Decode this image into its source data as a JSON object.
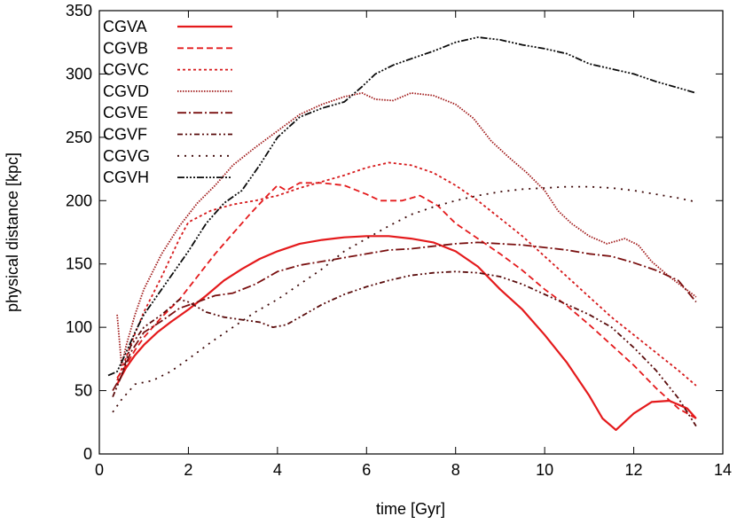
{
  "chart_data": {
    "type": "line",
    "xlabel": "time [Gyr]",
    "ylabel": "physical distance [kpc]",
    "xlim": [
      0,
      14
    ],
    "ylim": [
      0,
      350
    ],
    "xticks": [
      0,
      2,
      4,
      6,
      8,
      10,
      12,
      14
    ],
    "yticks": [
      0,
      50,
      100,
      150,
      200,
      250,
      300,
      350
    ],
    "grid": false,
    "legend_position": "top-left",
    "series": [
      {
        "name": "CGVA",
        "color": "#e41a1c",
        "style": "solid",
        "points": [
          [
            0.4,
            55
          ],
          [
            0.6,
            68
          ],
          [
            0.8,
            78
          ],
          [
            1.0,
            86
          ],
          [
            1.3,
            96
          ],
          [
            1.6,
            104
          ],
          [
            2.0,
            114
          ],
          [
            2.4,
            125
          ],
          [
            2.8,
            137
          ],
          [
            3.2,
            146
          ],
          [
            3.6,
            154
          ],
          [
            4.0,
            160
          ],
          [
            4.5,
            166
          ],
          [
            5.0,
            169
          ],
          [
            5.5,
            171
          ],
          [
            6.0,
            172
          ],
          [
            6.5,
            172
          ],
          [
            7.0,
            170
          ],
          [
            7.5,
            167
          ],
          [
            8.0,
            160
          ],
          [
            8.5,
            148
          ],
          [
            9.0,
            130
          ],
          [
            9.5,
            114
          ],
          [
            10.0,
            94
          ],
          [
            10.5,
            72
          ],
          [
            11.0,
            46
          ],
          [
            11.3,
            28
          ],
          [
            11.6,
            19
          ],
          [
            12.0,
            32
          ],
          [
            12.4,
            41
          ],
          [
            12.8,
            42
          ],
          [
            13.2,
            36
          ],
          [
            13.4,
            28
          ]
        ]
      },
      {
        "name": "CGVB",
        "color": "#e41a1c",
        "style": "dashed",
        "points": [
          [
            0.4,
            60
          ],
          [
            0.6,
            70
          ],
          [
            0.8,
            82
          ],
          [
            1.0,
            92
          ],
          [
            1.4,
            108
          ],
          [
            1.8,
            122
          ],
          [
            2.2,
            140
          ],
          [
            2.6,
            158
          ],
          [
            3.0,
            174
          ],
          [
            3.4,
            190
          ],
          [
            3.8,
            205
          ],
          [
            4.0,
            212
          ],
          [
            4.2,
            208
          ],
          [
            4.5,
            214
          ],
          [
            5.0,
            214
          ],
          [
            5.5,
            212
          ],
          [
            6.0,
            205
          ],
          [
            6.3,
            200
          ],
          [
            6.8,
            200
          ],
          [
            7.2,
            204
          ],
          [
            7.6,
            196
          ],
          [
            8.0,
            182
          ],
          [
            8.5,
            170
          ],
          [
            9.0,
            158
          ],
          [
            9.5,
            145
          ],
          [
            10.0,
            130
          ],
          [
            10.5,
            117
          ],
          [
            11.0,
            102
          ],
          [
            11.5,
            86
          ],
          [
            12.0,
            70
          ],
          [
            12.5,
            52
          ],
          [
            13.0,
            36
          ],
          [
            13.4,
            28
          ]
        ]
      },
      {
        "name": "CGVC",
        "color": "#d6191b",
        "style": "dotted",
        "points": [
          [
            0.4,
            58
          ],
          [
            0.6,
            76
          ],
          [
            0.8,
            95
          ],
          [
            1.0,
            112
          ],
          [
            1.4,
            140
          ],
          [
            1.8,
            170
          ],
          [
            2.0,
            183
          ],
          [
            2.5,
            192
          ],
          [
            3.0,
            197
          ],
          [
            3.5,
            200
          ],
          [
            4.0,
            204
          ],
          [
            4.5,
            210
          ],
          [
            5.0,
            215
          ],
          [
            5.5,
            220
          ],
          [
            6.0,
            226
          ],
          [
            6.5,
            230
          ],
          [
            7.0,
            228
          ],
          [
            7.5,
            222
          ],
          [
            8.0,
            212
          ],
          [
            8.5,
            200
          ],
          [
            9.0,
            186
          ],
          [
            9.5,
            172
          ],
          [
            10.0,
            156
          ],
          [
            10.5,
            140
          ],
          [
            11.0,
            124
          ],
          [
            11.5,
            108
          ],
          [
            12.0,
            94
          ],
          [
            12.5,
            80
          ],
          [
            13.0,
            66
          ],
          [
            13.4,
            54
          ]
        ]
      },
      {
        "name": "CGVD",
        "color": "#a01818",
        "style": "dotted-dense",
        "points": [
          [
            0.4,
            110
          ],
          [
            0.5,
            70
          ],
          [
            0.6,
            85
          ],
          [
            0.8,
            110
          ],
          [
            1.0,
            130
          ],
          [
            1.4,
            158
          ],
          [
            1.8,
            180
          ],
          [
            2.2,
            198
          ],
          [
            2.6,
            212
          ],
          [
            3.0,
            228
          ],
          [
            3.5,
            242
          ],
          [
            4.0,
            255
          ],
          [
            4.5,
            268
          ],
          [
            5.0,
            276
          ],
          [
            5.5,
            282
          ],
          [
            5.9,
            285
          ],
          [
            6.2,
            280
          ],
          [
            6.6,
            279
          ],
          [
            7.0,
            285
          ],
          [
            7.5,
            283
          ],
          [
            8.0,
            276
          ],
          [
            8.4,
            265
          ],
          [
            8.8,
            247
          ],
          [
            9.2,
            234
          ],
          [
            9.6,
            222
          ],
          [
            10.0,
            208
          ],
          [
            10.3,
            192
          ],
          [
            10.6,
            182
          ],
          [
            11.0,
            172
          ],
          [
            11.4,
            166
          ],
          [
            11.8,
            170
          ],
          [
            12.1,
            165
          ],
          [
            12.4,
            152
          ],
          [
            12.8,
            140
          ],
          [
            13.1,
            132
          ],
          [
            13.4,
            124
          ]
        ]
      },
      {
        "name": "CGVE",
        "color": "#7a1010",
        "style": "dash-dot",
        "points": [
          [
            0.3,
            50
          ],
          [
            0.5,
            62
          ],
          [
            0.7,
            80
          ],
          [
            1.0,
            96
          ],
          [
            1.4,
            105
          ],
          [
            1.8,
            115
          ],
          [
            2.2,
            120
          ],
          [
            2.6,
            125
          ],
          [
            3.0,
            127
          ],
          [
            3.5,
            134
          ],
          [
            4.0,
            144
          ],
          [
            4.5,
            149
          ],
          [
            5.0,
            152
          ],
          [
            5.5,
            155
          ],
          [
            6.0,
            158
          ],
          [
            6.5,
            161
          ],
          [
            7.0,
            162
          ],
          [
            7.5,
            164
          ],
          [
            8.0,
            166
          ],
          [
            8.5,
            167
          ],
          [
            9.0,
            166
          ],
          [
            9.5,
            165
          ],
          [
            10.0,
            163
          ],
          [
            10.5,
            161
          ],
          [
            11.0,
            158
          ],
          [
            11.5,
            156
          ],
          [
            12.0,
            151
          ],
          [
            12.5,
            145
          ],
          [
            13.0,
            137
          ],
          [
            13.4,
            120
          ]
        ]
      },
      {
        "name": "CGVF",
        "color": "#5a0c0c",
        "style": "dash-dot-dot",
        "points": [
          [
            0.3,
            45
          ],
          [
            0.5,
            62
          ],
          [
            0.7,
            85
          ],
          [
            1.0,
            100
          ],
          [
            1.4,
            110
          ],
          [
            1.8,
            122
          ],
          [
            2.0,
            120
          ],
          [
            2.4,
            112
          ],
          [
            2.8,
            108
          ],
          [
            3.2,
            106
          ],
          [
            3.6,
            104
          ],
          [
            3.9,
            100
          ],
          [
            4.2,
            102
          ],
          [
            4.6,
            110
          ],
          [
            5.0,
            118
          ],
          [
            5.5,
            126
          ],
          [
            6.0,
            132
          ],
          [
            6.5,
            137
          ],
          [
            7.0,
            141
          ],
          [
            7.5,
            143
          ],
          [
            8.0,
            144
          ],
          [
            8.5,
            143
          ],
          [
            9.0,
            140
          ],
          [
            9.5,
            134
          ],
          [
            10.0,
            126
          ],
          [
            10.5,
            118
          ],
          [
            11.0,
            110
          ],
          [
            11.5,
            100
          ],
          [
            12.0,
            84
          ],
          [
            12.5,
            66
          ],
          [
            13.0,
            44
          ],
          [
            13.4,
            22
          ]
        ]
      },
      {
        "name": "CGVG",
        "color": "#3d0808",
        "style": "sparse-dotted",
        "points": [
          [
            0.3,
            33
          ],
          [
            0.5,
            43
          ],
          [
            0.8,
            55
          ],
          [
            1.2,
            58
          ],
          [
            1.6,
            65
          ],
          [
            2.0,
            75
          ],
          [
            2.5,
            88
          ],
          [
            3.0,
            100
          ],
          [
            3.5,
            112
          ],
          [
            4.0,
            122
          ],
          [
            4.5,
            134
          ],
          [
            5.0,
            146
          ],
          [
            5.5,
            160
          ],
          [
            6.0,
            170
          ],
          [
            6.5,
            180
          ],
          [
            7.0,
            189
          ],
          [
            7.5,
            195
          ],
          [
            8.0,
            200
          ],
          [
            8.5,
            204
          ],
          [
            9.0,
            207
          ],
          [
            9.5,
            209
          ],
          [
            10.0,
            210
          ],
          [
            10.5,
            211
          ],
          [
            11.0,
            211
          ],
          [
            11.5,
            210
          ],
          [
            12.0,
            208
          ],
          [
            12.5,
            205
          ],
          [
            13.0,
            202
          ],
          [
            13.4,
            199
          ]
        ]
      },
      {
        "name": "CGVH",
        "color": "#0a0a0a",
        "style": "dash-dot-dot-dot",
        "points": [
          [
            0.2,
            62
          ],
          [
            0.4,
            65
          ],
          [
            0.6,
            80
          ],
          [
            0.8,
            96
          ],
          [
            1.0,
            110
          ],
          [
            1.4,
            130
          ],
          [
            1.8,
            150
          ],
          [
            2.0,
            160
          ],
          [
            2.4,
            182
          ],
          [
            2.8,
            198
          ],
          [
            3.2,
            208
          ],
          [
            3.6,
            228
          ],
          [
            4.0,
            250
          ],
          [
            4.5,
            266
          ],
          [
            5.0,
            273
          ],
          [
            5.5,
            278
          ],
          [
            5.9,
            290
          ],
          [
            6.2,
            300
          ],
          [
            6.6,
            307
          ],
          [
            7.0,
            312
          ],
          [
            7.5,
            318
          ],
          [
            8.0,
            325
          ],
          [
            8.5,
            329
          ],
          [
            9.0,
            327
          ],
          [
            9.5,
            323
          ],
          [
            10.0,
            320
          ],
          [
            10.5,
            316
          ],
          [
            11.0,
            308
          ],
          [
            11.5,
            304
          ],
          [
            12.0,
            300
          ],
          [
            12.5,
            294
          ],
          [
            13.0,
            289
          ],
          [
            13.4,
            285
          ]
        ]
      }
    ]
  }
}
